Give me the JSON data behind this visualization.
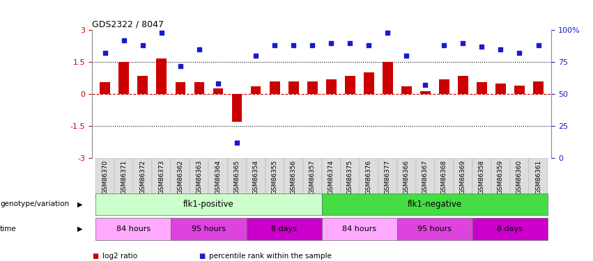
{
  "title": "GDS2322 / 8047",
  "samples": [
    "GSM86370",
    "GSM86371",
    "GSM86372",
    "GSM86373",
    "GSM86362",
    "GSM86363",
    "GSM86364",
    "GSM86365",
    "GSM86354",
    "GSM86355",
    "GSM86356",
    "GSM86357",
    "GSM86374",
    "GSM86375",
    "GSM86376",
    "GSM86377",
    "GSM86366",
    "GSM86367",
    "GSM86368",
    "GSM86369",
    "GSM86358",
    "GSM86359",
    "GSM86360",
    "GSM86361"
  ],
  "log2_ratio": [
    0.55,
    1.5,
    0.85,
    1.65,
    0.55,
    0.55,
    0.25,
    -1.3,
    0.35,
    0.6,
    0.6,
    0.6,
    0.7,
    0.85,
    1.0,
    1.5,
    0.35,
    0.12,
    0.7,
    0.85,
    0.55,
    0.5,
    0.4,
    0.6
  ],
  "percentile_rank": [
    82,
    92,
    88,
    98,
    72,
    85,
    58,
    12,
    80,
    88,
    88,
    88,
    90,
    90,
    88,
    98,
    80,
    57,
    88,
    90,
    87,
    85,
    82,
    88
  ],
  "ylim_left": [
    -3,
    3
  ],
  "ylim_right": [
    0,
    100
  ],
  "yticks_left": [
    -3,
    -1.5,
    0,
    1.5,
    3
  ],
  "yticks_right": [
    0,
    25,
    50,
    75,
    100
  ],
  "bar_color": "#cc0000",
  "dot_color": "#1a1acc",
  "bar_width": 0.55,
  "genotype_labels": [
    {
      "label": "flk1-positive",
      "start": 0,
      "end": 12,
      "color": "#ccffcc"
    },
    {
      "label": "flk1-negative",
      "start": 12,
      "end": 24,
      "color": "#44dd44"
    }
  ],
  "time_labels": [
    {
      "label": "84 hours",
      "start": 0,
      "end": 4,
      "color": "#ffaaff"
    },
    {
      "label": "95 hours",
      "start": 4,
      "end": 8,
      "color": "#dd44dd"
    },
    {
      "label": "8 days",
      "start": 8,
      "end": 12,
      "color": "#cc00cc"
    },
    {
      "label": "84 hours",
      "start": 12,
      "end": 16,
      "color": "#ffaaff"
    },
    {
      "label": "95 hours",
      "start": 16,
      "end": 20,
      "color": "#dd44dd"
    },
    {
      "label": "8 days",
      "start": 20,
      "end": 24,
      "color": "#cc00cc"
    }
  ],
  "legend_items": [
    {
      "label": "log2 ratio",
      "color": "#cc0000"
    },
    {
      "label": "percentile rank within the sample",
      "color": "#1a1acc"
    }
  ],
  "bar_color_red": "#cc0000",
  "dot_color_blue": "#1a1acc",
  "genotype_row_label": "genotype/variation",
  "time_row_label": "time",
  "bg_xticklabel_color": "#dddddd"
}
